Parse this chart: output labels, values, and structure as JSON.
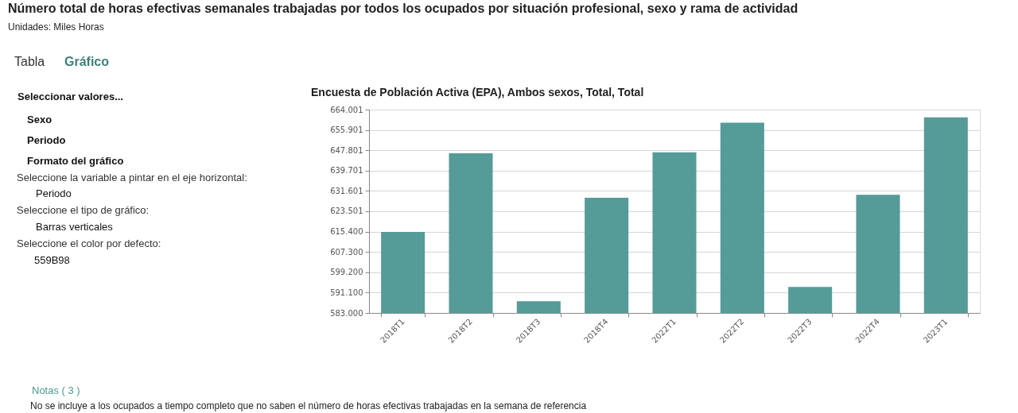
{
  "chart_data": {
    "type": "bar",
    "title": "Número total de horas efectivas semanales trabajadas por todos los ocupados por situación profesional, sexo y rama de actividad",
    "subtitle": "Unidades: Miles Horas",
    "annotations": [
      "Tabla",
      "Gráfico",
      "Seleccionar valores...",
      "Sexo",
      "Periodo",
      "Formato del gráfico",
      "Seleccione la variable a pintar en el eje horizontal:",
      "Periodo",
      "Seleccione el tipo de gráfico:",
      "Barras verticales",
      "Seleccione el color por defecto:",
      "559B98",
      "Encuesta de Población Activa (EPA), Ambos sexos, Total, Total",
      "Notas ( 3 )",
      "No se incluye a los ocupados a tiempo completo que no saben el número de horas efectivas trabajadas en la semana de referencia"
    ],
    "categories": [
      "2018T1",
      "2018T2",
      "2018T3",
      "2018T4",
      "2022T1",
      "2022T2",
      "2022T3",
      "2022T4",
      "2023T1"
    ],
    "values": [
      615300,
      646600,
      587700,
      628900,
      647000,
      658800,
      593400,
      630100,
      660900
    ],
    "color": "#559b98",
    "ylim": [
      583000,
      664001
    ],
    "yticks": [
      {
        "value": 583000,
        "label": "583.000"
      },
      {
        "value": 591100,
        "label": "591.100"
      },
      {
        "value": 599200,
        "label": "599.200"
      },
      {
        "value": 607300,
        "label": "607.300"
      },
      {
        "value": 615400,
        "label": "615.400"
      },
      {
        "value": 623501,
        "label": "623.501"
      },
      {
        "value": 631601,
        "label": "631.601"
      },
      {
        "value": 639701,
        "label": "639.701"
      },
      {
        "value": 647801,
        "label": "647.801"
      },
      {
        "value": 655901,
        "label": "655.901"
      },
      {
        "value": 664001,
        "label": "664.001"
      }
    ],
    "grid": "y"
  }
}
